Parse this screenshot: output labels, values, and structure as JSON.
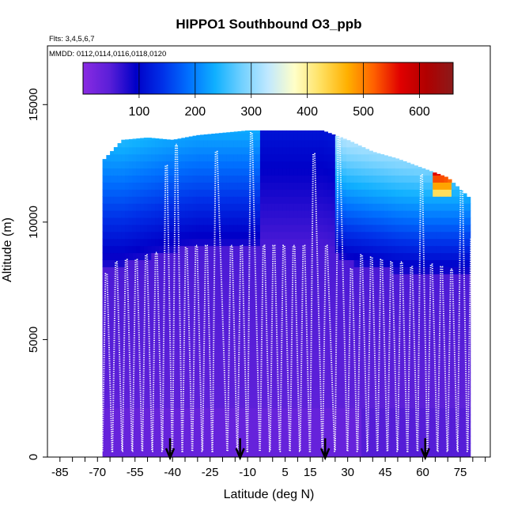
{
  "chart_data": {
    "type": "heatmap",
    "title": "HIPPO1 Southbound O3_ppb",
    "subtitle_flights": "Flts: 3,4,5,6,7",
    "subtitle_dates": "MMDD: 0112,0114,0116,0118,0120",
    "xlabel": "Latitude (deg N)",
    "ylabel": "Altitude (m)",
    "xlim": [
      -90,
      87
    ],
    "ylim": [
      0,
      17500
    ],
    "x_tick_labels": [
      "-85",
      "-70",
      "-55",
      "-40",
      "-25",
      "-10",
      "5",
      "15",
      "30",
      "45",
      "60",
      "75"
    ],
    "x_tick_values": [
      -85,
      -70,
      -55,
      -40,
      -25,
      -10,
      5,
      15,
      30,
      45,
      60,
      75
    ],
    "y_tick_labels": [
      "0",
      "5000",
      "10000",
      "15000"
    ],
    "y_tick_values": [
      0,
      5000,
      10000,
      15000
    ],
    "colorbar": {
      "range": [
        0,
        660
      ],
      "tick_labels": [
        "100",
        "200",
        "300",
        "400",
        "500",
        "600"
      ],
      "tick_values": [
        100,
        200,
        300,
        400,
        500,
        600
      ],
      "colors": [
        "#8a2be2",
        "#5a1fd8",
        "#0000c8",
        "#0030e8",
        "#0070ff",
        "#10b0ff",
        "#70d0ff",
        "#c0e8ff",
        "#ffffc8",
        "#ffe060",
        "#ffb000",
        "#ff6000",
        "#e00000",
        "#b00000",
        "#8b1a1a"
      ]
    },
    "curtain": {
      "lat_range": [
        -68,
        79
      ],
      "top_altitude_m": 13900,
      "profiles": [
        {
          "lat": -68,
          "alt_top": 12600,
          "band_top": 8200
        },
        {
          "lat": -60,
          "alt_top": 13500,
          "band_top": 8200
        },
        {
          "lat": -50,
          "alt_top": 13600,
          "band_top": 8500
        },
        {
          "lat": -40,
          "alt_top": 13500,
          "band_top": 8800
        },
        {
          "lat": -30,
          "alt_top": 13700,
          "band_top": 9000
        },
        {
          "lat": -20,
          "alt_top": 13800,
          "band_top": 9000
        },
        {
          "lat": -10,
          "alt_top": 13900,
          "band_top": 9000
        },
        {
          "lat": 0,
          "alt_top": 13900,
          "band_top": 9000
        },
        {
          "lat": 10,
          "alt_top": 13900,
          "band_top": 9000
        },
        {
          "lat": 20,
          "alt_top": 13900,
          "band_top": 9000
        },
        {
          "lat": 30,
          "alt_top": 13500,
          "band_top": 8300
        },
        {
          "lat": 40,
          "alt_top": 13000,
          "band_top": 8100
        },
        {
          "lat": 50,
          "alt_top": 12700,
          "band_top": 7900
        },
        {
          "lat": 60,
          "alt_top": 12300,
          "band_top": 7800
        },
        {
          "lat": 70,
          "alt_top": 11900,
          "band_top": 7800
        },
        {
          "lat": 79,
          "alt_top": 11000,
          "band_top": 7800
        }
      ],
      "ozone_levels": {
        "boundary_layer_lat_south": 35,
        "lower_troposphere": 40,
        "mid_troposphere": 55,
        "upper_troposphere": 80,
        "lower_stratosphere_south": 200,
        "lower_stratosphere_north": 260,
        "high_north_max": 640
      }
    },
    "flight_legs": [
      {
        "lat": -68,
        "alt_top": 7800
      },
      {
        "lat": -64,
        "alt_top": 8300
      },
      {
        "lat": -60,
        "alt_top": 8400
      },
      {
        "lat": -56,
        "alt_top": 8400
      },
      {
        "lat": -52,
        "alt_top": 8600
      },
      {
        "lat": -48,
        "alt_top": 8700
      },
      {
        "lat": -44,
        "alt_top": 12400
      },
      {
        "lat": -40,
        "alt_top": 13300
      },
      {
        "lat": -36,
        "alt_top": 8900
      },
      {
        "lat": -32,
        "alt_top": 9000
      },
      {
        "lat": -28,
        "alt_top": 9000
      },
      {
        "lat": -24,
        "alt_top": 13000
      },
      {
        "lat": -18,
        "alt_top": 9000
      },
      {
        "lat": -14,
        "alt_top": 9000
      },
      {
        "lat": -10,
        "alt_top": 13800
      },
      {
        "lat": -5,
        "alt_top": 9000
      },
      {
        "lat": -1,
        "alt_top": 9000
      },
      {
        "lat": 3,
        "alt_top": 9000
      },
      {
        "lat": 7,
        "alt_top": 9000
      },
      {
        "lat": 11,
        "alt_top": 9000
      },
      {
        "lat": 15,
        "alt_top": 12900
      },
      {
        "lat": 20,
        "alt_top": 9000
      },
      {
        "lat": 25,
        "alt_top": 13700
      },
      {
        "lat": 30,
        "alt_top": 8000
      },
      {
        "lat": 34,
        "alt_top": 8600
      },
      {
        "lat": 38,
        "alt_top": 8500
      },
      {
        "lat": 42,
        "alt_top": 8400
      },
      {
        "lat": 46,
        "alt_top": 8300
      },
      {
        "lat": 50,
        "alt_top": 8300
      },
      {
        "lat": 54,
        "alt_top": 8100
      },
      {
        "lat": 58,
        "alt_top": 12000
      },
      {
        "lat": 62,
        "alt_top": 8200
      },
      {
        "lat": 66,
        "alt_top": 8100
      },
      {
        "lat": 70,
        "alt_top": 8000
      },
      {
        "lat": 74,
        "alt_top": 12000
      },
      {
        "lat": 78,
        "alt_top": 9300
      }
    ],
    "markers": [
      {
        "lat": -41,
        "type": "arrow-down"
      },
      {
        "lat": -13,
        "type": "arrow-down"
      },
      {
        "lat": 21,
        "type": "arrow-down"
      },
      {
        "lat": 61,
        "type": "arrow-down"
      }
    ]
  }
}
